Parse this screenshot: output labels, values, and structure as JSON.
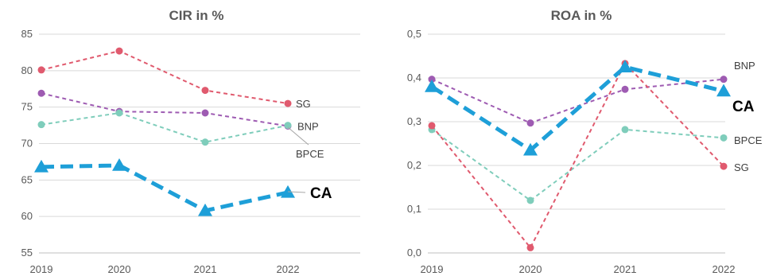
{
  "chart_data": [
    {
      "type": "line",
      "title": "CIR in %",
      "xlabel": "",
      "ylabel": "",
      "categories": [
        "2019",
        "2020",
        "2021",
        "2022"
      ],
      "ylim": [
        55,
        85
      ],
      "yticks": [
        55,
        60,
        65,
        70,
        75,
        80,
        85
      ],
      "ytick_labels": [
        "55",
        "60",
        "65",
        "70",
        "75",
        "80",
        "85"
      ],
      "grid": true,
      "series": [
        {
          "name": "SG",
          "values": [
            80.1,
            82.7,
            77.3,
            75.5
          ],
          "color": "#e05a6e",
          "highlight": false,
          "marker": "circle"
        },
        {
          "name": "BNP",
          "values": [
            76.9,
            74.4,
            74.2,
            72.4
          ],
          "color": "#9e5bb2",
          "highlight": false,
          "marker": "circle"
        },
        {
          "name": "BPCE",
          "values": [
            72.6,
            74.2,
            70.2,
            72.5
          ],
          "color": "#7fcdbb",
          "highlight": false,
          "marker": "circle"
        },
        {
          "name": "CA",
          "values": [
            66.8,
            67.0,
            60.8,
            63.3
          ],
          "color": "#1e9fd8",
          "highlight": true,
          "marker": "triangle"
        }
      ]
    },
    {
      "type": "line",
      "title": "ROA in %",
      "xlabel": "",
      "ylabel": "",
      "categories": [
        "2019",
        "2020",
        "2021",
        "2022"
      ],
      "ylim": [
        0,
        0.5
      ],
      "yticks": [
        0,
        0.1,
        0.2,
        0.3,
        0.4,
        0.5
      ],
      "ytick_labels": [
        "0,0",
        "0,1",
        "0,2",
        "0,3",
        "0,4",
        "0,5"
      ],
      "grid": true,
      "series": [
        {
          "name": "BNP",
          "values": [
            0.397,
            0.297,
            0.374,
            0.397
          ],
          "color": "#9e5bb2",
          "highlight": false,
          "marker": "circle"
        },
        {
          "name": "CA",
          "values": [
            0.38,
            0.235,
            0.425,
            0.37
          ],
          "color": "#1e9fd8",
          "highlight": true,
          "marker": "triangle"
        },
        {
          "name": "BPCE",
          "values": [
            0.282,
            0.12,
            0.282,
            0.263
          ],
          "color": "#7fcdbb",
          "highlight": false,
          "marker": "circle"
        },
        {
          "name": "SG",
          "values": [
            0.291,
            0.012,
            0.433,
            0.198
          ],
          "color": "#e05a6e",
          "highlight": false,
          "marker": "circle"
        }
      ]
    }
  ]
}
